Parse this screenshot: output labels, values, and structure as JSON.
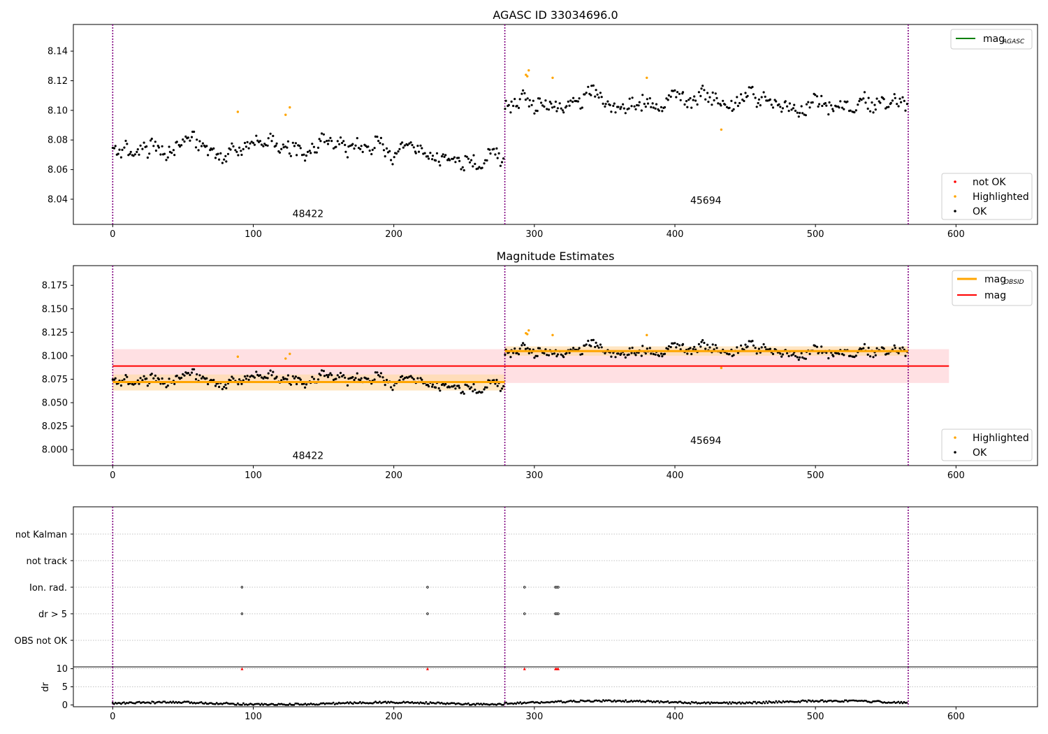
{
  "colors": {
    "ok": "#000000",
    "highlighted": "#ffa500",
    "not_ok": "#ff0000",
    "obs_boundary": "#800080",
    "mag_line": "#ff0000",
    "mag_band": "#ffe0e3",
    "obsid_line": "#ffa500",
    "obsid_band": "#ffdba8",
    "agasc_line": "#008000",
    "grid": "#b0b0b0"
  },
  "chart_data": [
    {
      "type": "scatter",
      "title": "AGASC ID 33034696.0",
      "xlim": [
        -28,
        658
      ],
      "ylim": [
        8.023,
        8.158
      ],
      "x_ticks": [
        0,
        100,
        200,
        300,
        400,
        500,
        600
      ],
      "y_ticks": [
        8.04,
        8.06,
        8.08,
        8.1,
        8.12,
        8.14
      ],
      "y_tick_labels": [
        "8.04",
        "8.06",
        "8.08",
        "8.10",
        "8.12",
        "8.14"
      ],
      "obs_boundaries": [
        0,
        279,
        566
      ],
      "annotations": [
        {
          "text": "48422",
          "x": 139,
          "y": 8.028
        },
        {
          "text": "45694",
          "x": 422,
          "y": 8.037
        }
      ],
      "segments": [
        {
          "start": 0,
          "end": 279,
          "base": 8.072
        },
        {
          "start": 279,
          "end": 566,
          "base": 8.105
        }
      ],
      "highlighted_points": [
        {
          "x": 89,
          "y": 8.099
        },
        {
          "x": 123,
          "y": 8.097
        },
        {
          "x": 126,
          "y": 8.102
        },
        {
          "x": 294,
          "y": 8.124
        },
        {
          "x": 295,
          "y": 8.123
        },
        {
          "x": 296,
          "y": 8.127
        },
        {
          "x": 313,
          "y": 8.122
        },
        {
          "x": 380,
          "y": 8.122
        },
        {
          "x": 433,
          "y": 8.087
        }
      ],
      "legend_top": [
        {
          "label": "mag",
          "subscript": "AGASC"
        }
      ],
      "legend_bottom": [
        {
          "label": "not OK",
          "marker": "not_ok"
        },
        {
          "label": "Highlighted",
          "marker": "highlighted"
        },
        {
          "label": "OK",
          "marker": "ok"
        }
      ]
    },
    {
      "type": "scatter",
      "title": "Magnitude Estimates",
      "xlim": [
        -28,
        658
      ],
      "ylim": [
        7.983,
        8.196
      ],
      "x_ticks": [
        0,
        100,
        200,
        300,
        400,
        500,
        600
      ],
      "y_ticks": [
        8.0,
        8.025,
        8.05,
        8.075,
        8.1,
        8.125,
        8.15,
        8.175
      ],
      "y_tick_labels": [
        "8.000",
        "8.025",
        "8.050",
        "8.075",
        "8.100",
        "8.125",
        "8.150",
        "8.175"
      ],
      "obs_boundaries": [
        0,
        279,
        566
      ],
      "mag": {
        "value": 8.089,
        "lower": 8.071,
        "upper": 8.107,
        "x_start": 0,
        "x_end": 595
      },
      "mag_obsid": [
        {
          "x_start": 0,
          "x_end": 279,
          "value": 8.072,
          "lower": 8.063,
          "upper": 8.08
        },
        {
          "x_start": 279,
          "x_end": 566,
          "value": 8.105,
          "lower": 8.1,
          "upper": 8.11
        }
      ],
      "annotations": [
        {
          "text": "48422",
          "x": 139,
          "y": 7.99
        },
        {
          "text": "45694",
          "x": 422,
          "y": 8.006
        }
      ],
      "legend_top": [
        {
          "label": "mag",
          "subscript": "OBSID",
          "marker": "obsid_line"
        },
        {
          "label": "mag",
          "subscript": "",
          "marker": "mag_line"
        }
      ],
      "legend_bottom": [
        {
          "label": "Highlighted",
          "marker": "highlighted"
        },
        {
          "label": "OK",
          "marker": "ok"
        }
      ]
    },
    {
      "type": "scatter",
      "title": "",
      "xlim": [
        -28,
        658
      ],
      "categories": [
        "not Kalman",
        "not track",
        "Ion. rad.",
        "dr > 5",
        "OBS not OK"
      ],
      "flag_points": {
        "Ion. rad.": [
          92,
          224,
          293,
          315,
          316,
          317
        ],
        "dr > 5": [
          92,
          224,
          293,
          315,
          316,
          317
        ]
      },
      "obs_boundaries": [
        0,
        279,
        566
      ]
    },
    {
      "type": "scatter",
      "ylabel": "dr",
      "xlim": [
        -28,
        658
      ],
      "ylim": [
        -0.5,
        10.5
      ],
      "x_ticks": [
        0,
        100,
        200,
        300,
        400,
        500,
        600
      ],
      "y_ticks": [
        0,
        5,
        10
      ],
      "y_tick_labels": [
        "0",
        "5",
        "10"
      ],
      "obs_boundaries": [
        0,
        279,
        566
      ],
      "flagged_dr": [
        92,
        224,
        293,
        315,
        316,
        317
      ],
      "flagged_value": 10
    }
  ]
}
